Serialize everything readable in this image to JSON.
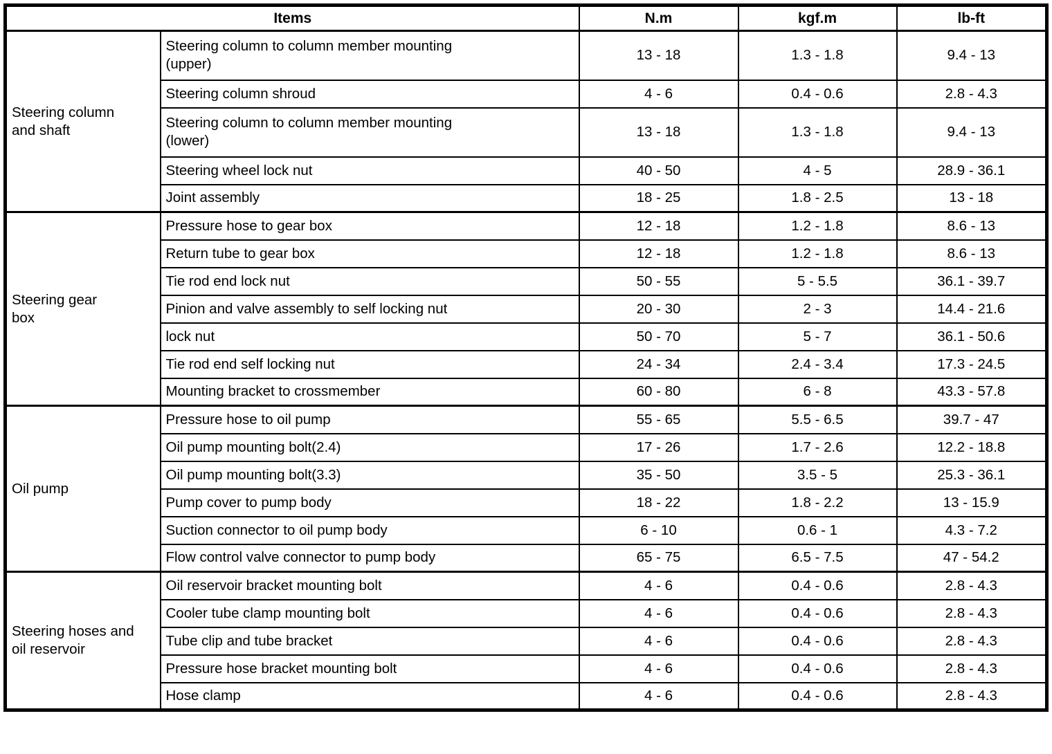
{
  "table": {
    "colors": {
      "border": "#000000",
      "text": "#000000",
      "background": "#ffffff"
    },
    "header": {
      "items": "Items",
      "nm": "N.m",
      "kgfm": "kgf.m",
      "lbft": "lb-ft"
    },
    "sections": [
      {
        "category": "Steering column\nand shaft",
        "rows": [
          {
            "item": "Steering column to column member mounting\n(upper)",
            "nm": "13 - 18",
            "kgfm": "1.3 - 1.8",
            "lbft": "9.4 - 13"
          },
          {
            "item": "Steering column shroud",
            "nm": "4 - 6",
            "kgfm": "0.4 - 0.6",
            "lbft": "2.8 - 4.3"
          },
          {
            "item": "Steering column to column member mounting\n(lower)",
            "nm": "13 - 18",
            "kgfm": "1.3 - 1.8",
            "lbft": "9.4 - 13"
          },
          {
            "item": "Steering wheel lock nut",
            "nm": "40 - 50",
            "kgfm": "4 - 5",
            "lbft": "28.9 - 36.1"
          },
          {
            "item": "Joint assembly",
            "nm": "18 - 25",
            "kgfm": "1.8 - 2.5",
            "lbft": "13 - 18"
          }
        ]
      },
      {
        "category": "Steering gear\nbox",
        "rows": [
          {
            "item": "Pressure hose to gear box",
            "nm": "12 - 18",
            "kgfm": "1.2 - 1.8",
            "lbft": "8.6 - 13"
          },
          {
            "item": "Return tube to gear box",
            "nm": "12 - 18",
            "kgfm": "1.2 - 1.8",
            "lbft": "8.6 - 13"
          },
          {
            "item": "Tie rod end lock nut",
            "nm": "50 - 55",
            "kgfm": "5 - 5.5",
            "lbft": "36.1 - 39.7"
          },
          {
            "item": "Pinion and valve assembly to self locking nut",
            "nm": "20 - 30",
            "kgfm": "2 - 3",
            "lbft": "14.4 - 21.6"
          },
          {
            "item": "lock nut",
            "nm": "50 - 70",
            "kgfm": "5 - 7",
            "lbft": "36.1 - 50.6"
          },
          {
            "item": "Tie rod end self locking nut",
            "nm": "24 - 34",
            "kgfm": "2.4 - 3.4",
            "lbft": "17.3 - 24.5"
          },
          {
            "item": "Mounting bracket to crossmember",
            "nm": "60 - 80",
            "kgfm": "6 - 8",
            "lbft": "43.3 - 57.8"
          }
        ]
      },
      {
        "category": "Oil pump",
        "rows": [
          {
            "item": "Pressure hose to oil pump",
            "nm": "55 - 65",
            "kgfm": "5.5 - 6.5",
            "lbft": "39.7 - 47"
          },
          {
            "item": "Oil pump mounting bolt(2.4)",
            "nm": "17 - 26",
            "kgfm": "1.7 - 2.6",
            "lbft": "12.2 - 18.8"
          },
          {
            "item": "Oil pump mounting bolt(3.3)",
            "nm": "35 - 50",
            "kgfm": "3.5 - 5",
            "lbft": "25.3 - 36.1"
          },
          {
            "item": "Pump cover to pump body",
            "nm": "18 - 22",
            "kgfm": "1.8 - 2.2",
            "lbft": "13 - 15.9"
          },
          {
            "item": "Suction connector to oil pump body",
            "nm": "6 - 10",
            "kgfm": "0.6 - 1",
            "lbft": "4.3 - 7.2"
          },
          {
            "item": "Flow control valve connector to pump body",
            "nm": "65 - 75",
            "kgfm": "6.5 - 7.5",
            "lbft": "47 - 54.2"
          }
        ]
      },
      {
        "category": "Steering hoses and\noil reservoir",
        "rows": [
          {
            "item": "Oil reservoir bracket mounting bolt",
            "nm": "4 - 6",
            "kgfm": "0.4 - 0.6",
            "lbft": "2.8 - 4.3"
          },
          {
            "item": "Cooler tube clamp mounting bolt",
            "nm": "4 - 6",
            "kgfm": "0.4 - 0.6",
            "lbft": "2.8 - 4.3"
          },
          {
            "item": "Tube clip and tube bracket",
            "nm": "4 - 6",
            "kgfm": "0.4 - 0.6",
            "lbft": "2.8 - 4.3"
          },
          {
            "item": "Pressure hose bracket mounting bolt",
            "nm": "4 - 6",
            "kgfm": "0.4 - 0.6",
            "lbft": "2.8 - 4.3"
          },
          {
            "item": "Hose clamp",
            "nm": "4 - 6",
            "kgfm": "0.4 - 0.6",
            "lbft": "2.8 - 4.3"
          }
        ]
      }
    ]
  }
}
